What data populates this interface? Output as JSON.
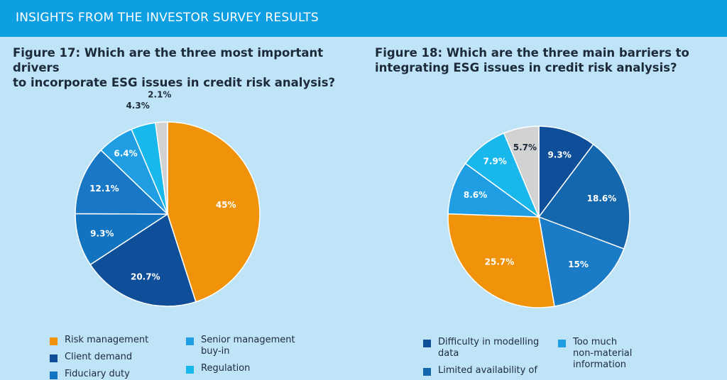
{
  "header": {
    "title": "INSIGHTS FROM THE INVESTOR SURVEY RESULTS"
  },
  "chart_data": [
    {
      "type": "pie",
      "title": "Figure 17: Which are the three most important drivers to incorporate ESG issues in credit risk analysis?",
      "title_lines": [
        "Figure 17: Which are the three most important drivers",
        "to incorporate ESG issues in credit risk analysis?"
      ],
      "slices": [
        {
          "label": "Risk management",
          "value": 45,
          "value_label": "45%",
          "color": "#f0930a",
          "label_color": "#ffffff"
        },
        {
          "label": "Client demand",
          "value": 20.7,
          "value_label": "20.7%",
          "color": "#0f4f9a",
          "label_color": "#ffffff"
        },
        {
          "label": "Fiduciary duty",
          "value": 9.3,
          "value_label": "9.3%",
          "color": "#1273c0",
          "label_color": "#ffffff"
        },
        {
          "label": "",
          "value": 12.1,
          "value_label": "12.1%",
          "color": "#1878c6",
          "label_color": "#ffffff"
        },
        {
          "label": "Senior management buy-in",
          "value": 6.4,
          "value_label": "6.4%",
          "color": "#1f9ee4",
          "label_color": "#ffffff"
        },
        {
          "label": "Regulation",
          "value": 4.3,
          "value_label": "4.3%",
          "color": "#19b8ec",
          "label_color": "#1c2a3a"
        },
        {
          "label": "",
          "value": 2.1,
          "value_label": "2.1%",
          "color": "#d2d2d2",
          "label_color": "#1c2a3a"
        }
      ],
      "legend": [
        {
          "text": [
            "Risk management"
          ],
          "color": "#f0930a"
        },
        {
          "text": [
            "Client demand"
          ],
          "color": "#0f4f9a"
        },
        {
          "text": [
            "Fiduciary duty"
          ],
          "color": "#1273c0"
        },
        {
          "text": [
            "Senior management",
            "buy-in"
          ],
          "color": "#1f9ee4"
        },
        {
          "text": [
            "Regulation"
          ],
          "color": "#19b8ec"
        }
      ]
    },
    {
      "type": "pie",
      "title": "Figure 18: Which are the three main barriers to integrating ESG issues in credit risk analysis?",
      "title_lines": [
        "Figure 18: Which are the three main barriers to",
        "integrating ESG issues in credit risk analysis?"
      ],
      "slices": [
        {
          "label": "Difficulty in modelling data",
          "value": 9.3,
          "value_label": "9.3%",
          "color": "#0f4f9a",
          "label_color": "#ffffff"
        },
        {
          "label": "Limited availability of",
          "value": 18.6,
          "value_label": "18.6%",
          "color": "#1466ad",
          "label_color": "#ffffff"
        },
        {
          "label": "",
          "value": 15,
          "value_label": "15%",
          "color": "#1a7bc7",
          "label_color": "#ffffff"
        },
        {
          "label": "",
          "value": 25.7,
          "value_label": "25.7%",
          "color": "#f0930a",
          "label_color": "#ffffff"
        },
        {
          "label": "",
          "value": 8.6,
          "value_label": "8.6%",
          "color": "#1f9ee4",
          "label_color": "#ffffff"
        },
        {
          "label": "Too much non-material information",
          "value": 7.9,
          "value_label": "7.9%",
          "color": "#19b8ec",
          "label_color": "#ffffff"
        },
        {
          "label": "",
          "value": 5.7,
          "value_label": "5.7%",
          "color": "#d2d2d2",
          "label_color": "#1c2a3a"
        }
      ],
      "legend": [
        {
          "text": [
            "Difficulty in modelling",
            "data"
          ],
          "color": "#0f4f9a"
        },
        {
          "text": [
            "Limited availability of"
          ],
          "color": "#1466ad"
        },
        {
          "text": [
            "Too much",
            "non-material",
            "information"
          ],
          "color": "#1f9ee4"
        }
      ]
    }
  ]
}
